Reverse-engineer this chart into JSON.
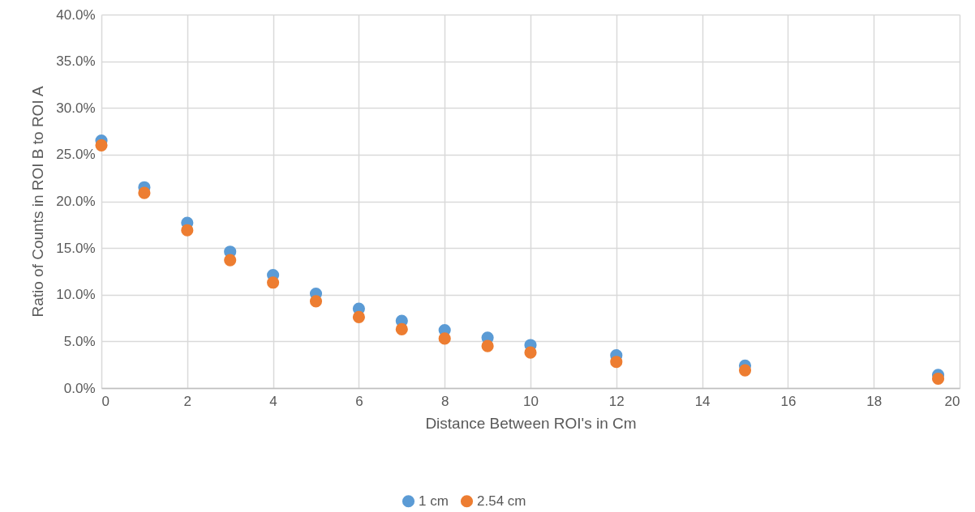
{
  "chart_data": {
    "type": "scatter",
    "xlabel": "Distance Between ROI's in Cm",
    "ylabel": "Ratio of Counts in ROI B to ROI A",
    "x": [
      0,
      1,
      2,
      3,
      4,
      5,
      6,
      7,
      8,
      9,
      10,
      12,
      15,
      19.5
    ],
    "series": [
      {
        "name": "1 cm",
        "color": "#5b9bd5",
        "values": [
          26.5,
          21.5,
          17.7,
          14.6,
          12.1,
          10.1,
          8.5,
          7.2,
          6.2,
          5.4,
          4.6,
          3.5,
          2.4,
          1.4
        ]
      },
      {
        "name": "2.54 cm",
        "color": "#ed7d31",
        "values": [
          26.0,
          20.9,
          16.9,
          13.7,
          11.3,
          9.3,
          7.6,
          6.3,
          5.3,
          4.5,
          3.8,
          2.8,
          1.9,
          1.0
        ]
      }
    ],
    "xlim": [
      0,
      20
    ],
    "xticks": [
      0,
      2,
      4,
      6,
      8,
      10,
      12,
      14,
      16,
      18,
      20
    ],
    "ylim": [
      0,
      40
    ],
    "yticks": [
      {
        "value": 0,
        "label": "0.0%"
      },
      {
        "value": 5,
        "label": "5.0%"
      },
      {
        "value": 10,
        "label": "10.0%"
      },
      {
        "value": 15,
        "label": "15.0%"
      },
      {
        "value": 20,
        "label": "20.0%"
      },
      {
        "value": 25,
        "label": "25.0%"
      },
      {
        "value": 30,
        "label": "30.0%"
      },
      {
        "value": 35,
        "label": "35.0%"
      },
      {
        "value": 40,
        "label": "40.0%"
      }
    ],
    "grid": true,
    "legend": "bottom",
    "marker": "circle"
  }
}
